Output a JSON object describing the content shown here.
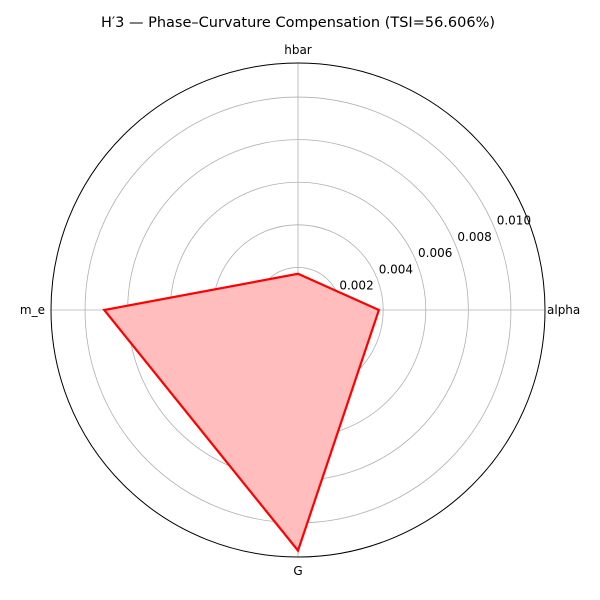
{
  "chart_data": {
    "type": "radar",
    "title": "H′3 — Phase–Curvature Compensation (TSI=56.606%)",
    "categories": [
      "alpha",
      "hbar",
      "m_e",
      "G"
    ],
    "series": [
      {
        "name": "H′3",
        "values": [
          0.0038,
          0.0017,
          0.0091,
          0.0113
        ],
        "color": "#ff0000",
        "fill": "#ffbdbd"
      }
    ],
    "rlim": [
      0,
      0.0116
    ],
    "r_ticks": [
      0.002,
      0.004,
      0.006,
      0.008,
      0.01
    ],
    "r_tick_labels": [
      "0.002",
      "0.004",
      "0.006",
      "0.008",
      "0.010"
    ],
    "grid": true
  }
}
